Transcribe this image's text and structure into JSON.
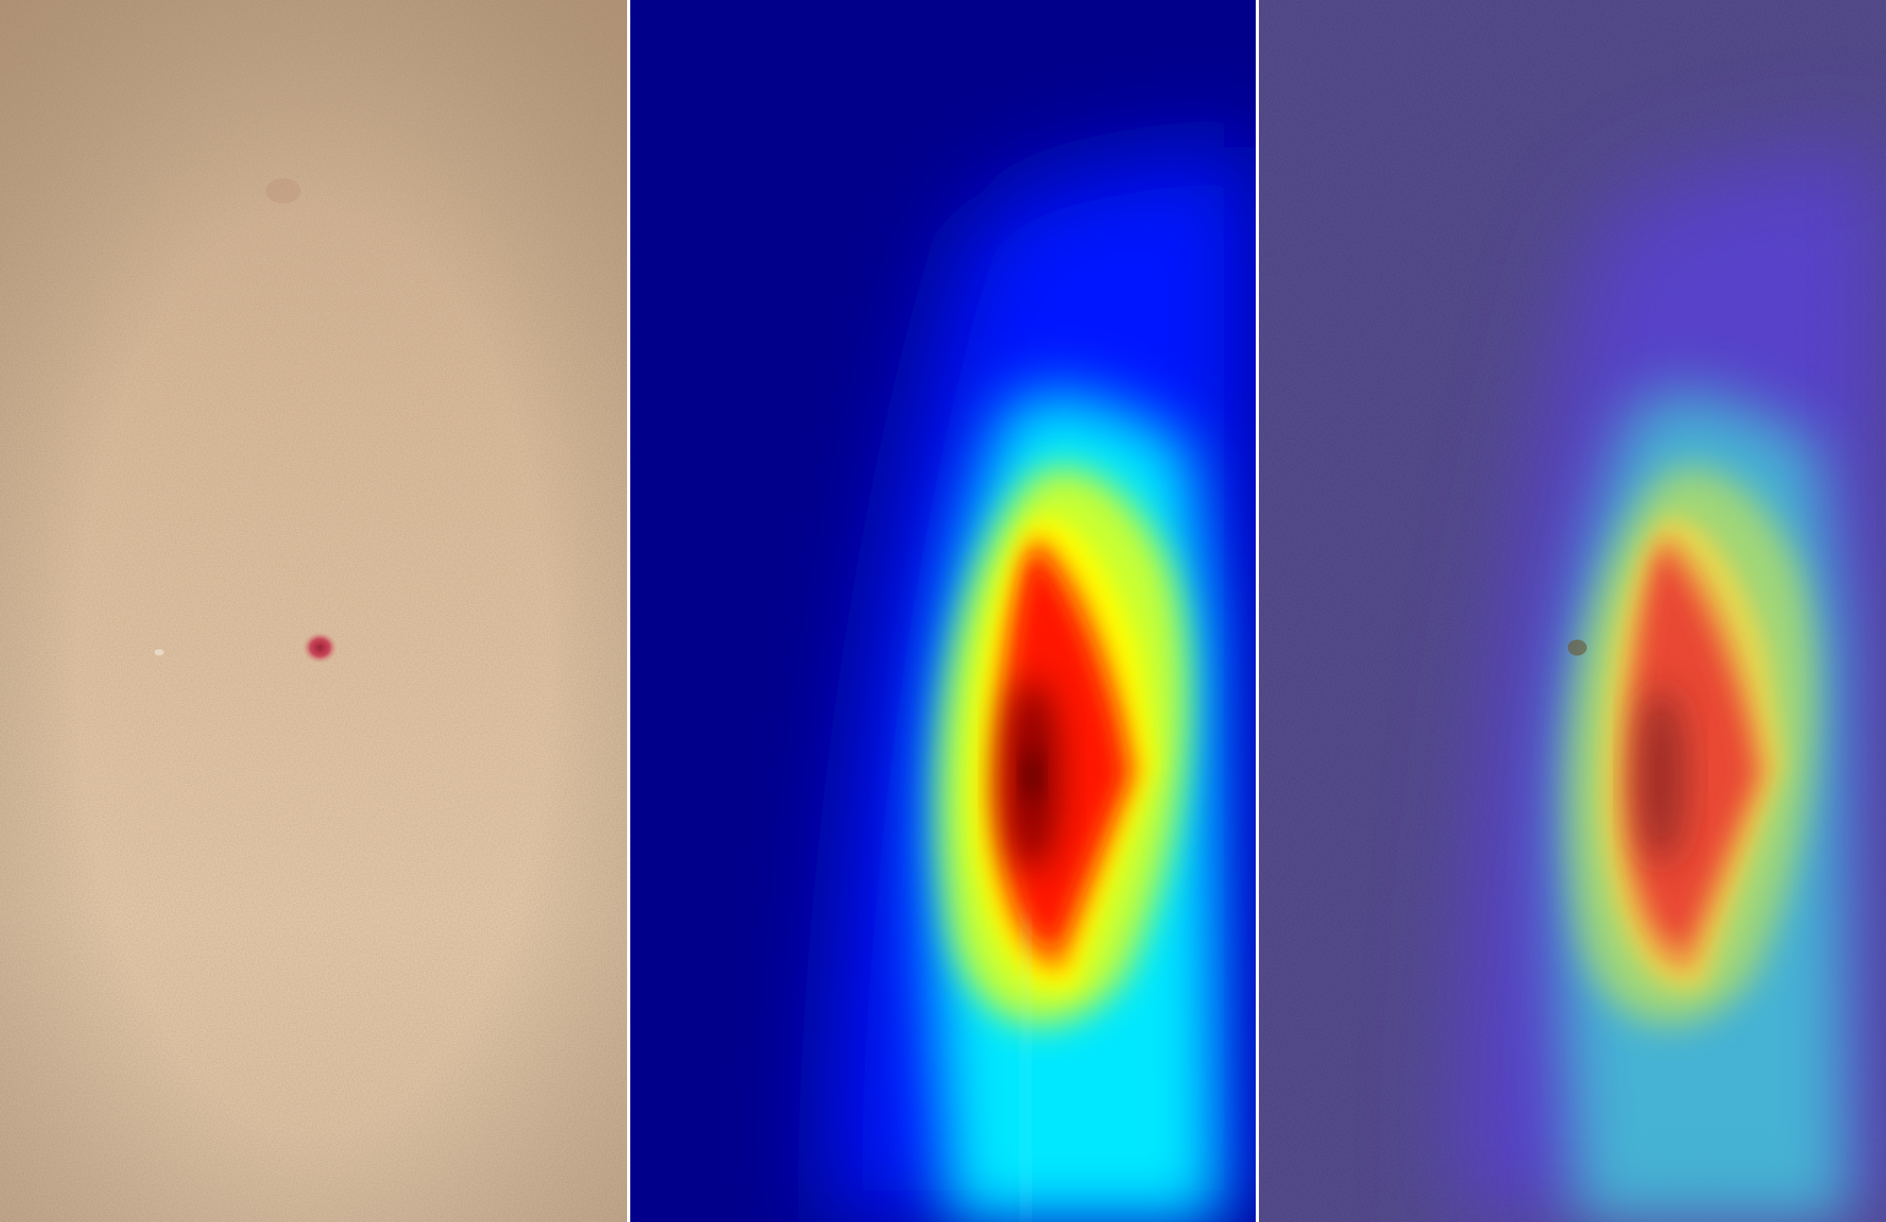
{
  "image": {
    "description_panels": [
      "skin-photo",
      "heatmap",
      "overlay"
    ],
    "colors": {
      "skin_base": "#d2b596",
      "skin_light": "#e4caab",
      "skin_shadow": "#b89a7c",
      "lesion": "#c0404f",
      "divider": "#ffffff",
      "heat_cold": "#00008b",
      "heat_blue": "#0018ff",
      "heat_cyan": "#00ffff",
      "heat_yellow": "#ffff00",
      "heat_red": "#ff1a00",
      "heat_core": "#7a0000",
      "overlay_tint": "#4a3d85"
    }
  }
}
